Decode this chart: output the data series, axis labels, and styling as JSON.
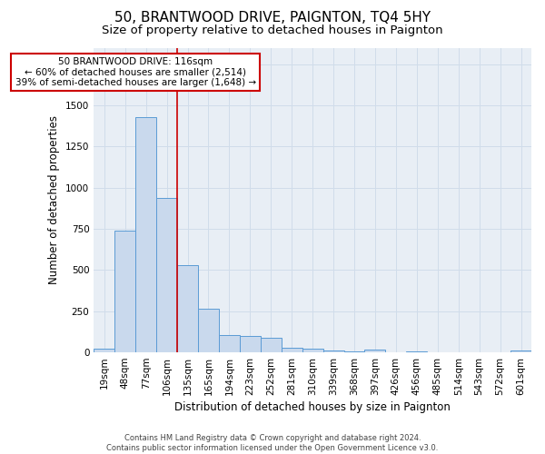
{
  "title": "50, BRANTWOOD DRIVE, PAIGNTON, TQ4 5HY",
  "subtitle": "Size of property relative to detached houses in Paignton",
  "xlabel": "Distribution of detached houses by size in Paignton",
  "ylabel": "Number of detached properties",
  "categories": [
    "19sqm",
    "48sqm",
    "77sqm",
    "106sqm",
    "135sqm",
    "165sqm",
    "194sqm",
    "223sqm",
    "252sqm",
    "281sqm",
    "310sqm",
    "339sqm",
    "368sqm",
    "397sqm",
    "426sqm",
    "456sqm",
    "485sqm",
    "514sqm",
    "543sqm",
    "572sqm",
    "601sqm"
  ],
  "values": [
    20,
    740,
    1430,
    940,
    530,
    265,
    105,
    100,
    90,
    30,
    25,
    10,
    5,
    15,
    2,
    5,
    2,
    0,
    0,
    0,
    10
  ],
  "bar_color": "#c9d9ed",
  "bar_edge_color": "#5b9bd5",
  "grid_color": "#d0dcea",
  "bg_color": "#e8eef5",
  "vline_x": 3.5,
  "vline_color": "#cc0000",
  "annotation_text": "50 BRANTWOOD DRIVE: 116sqm\n← 60% of detached houses are smaller (2,514)\n39% of semi-detached houses are larger (1,648) →",
  "annotation_box_color": "#ffffff",
  "annotation_box_edge": "#cc0000",
  "footer": "Contains HM Land Registry data © Crown copyright and database right 2024.\nContains public sector information licensed under the Open Government Licence v3.0.",
  "ylim": [
    0,
    1850
  ],
  "title_fontsize": 11,
  "subtitle_fontsize": 9.5,
  "label_fontsize": 8.5,
  "tick_fontsize": 7.5,
  "annotation_fontsize": 7.5,
  "footer_fontsize": 6.0
}
